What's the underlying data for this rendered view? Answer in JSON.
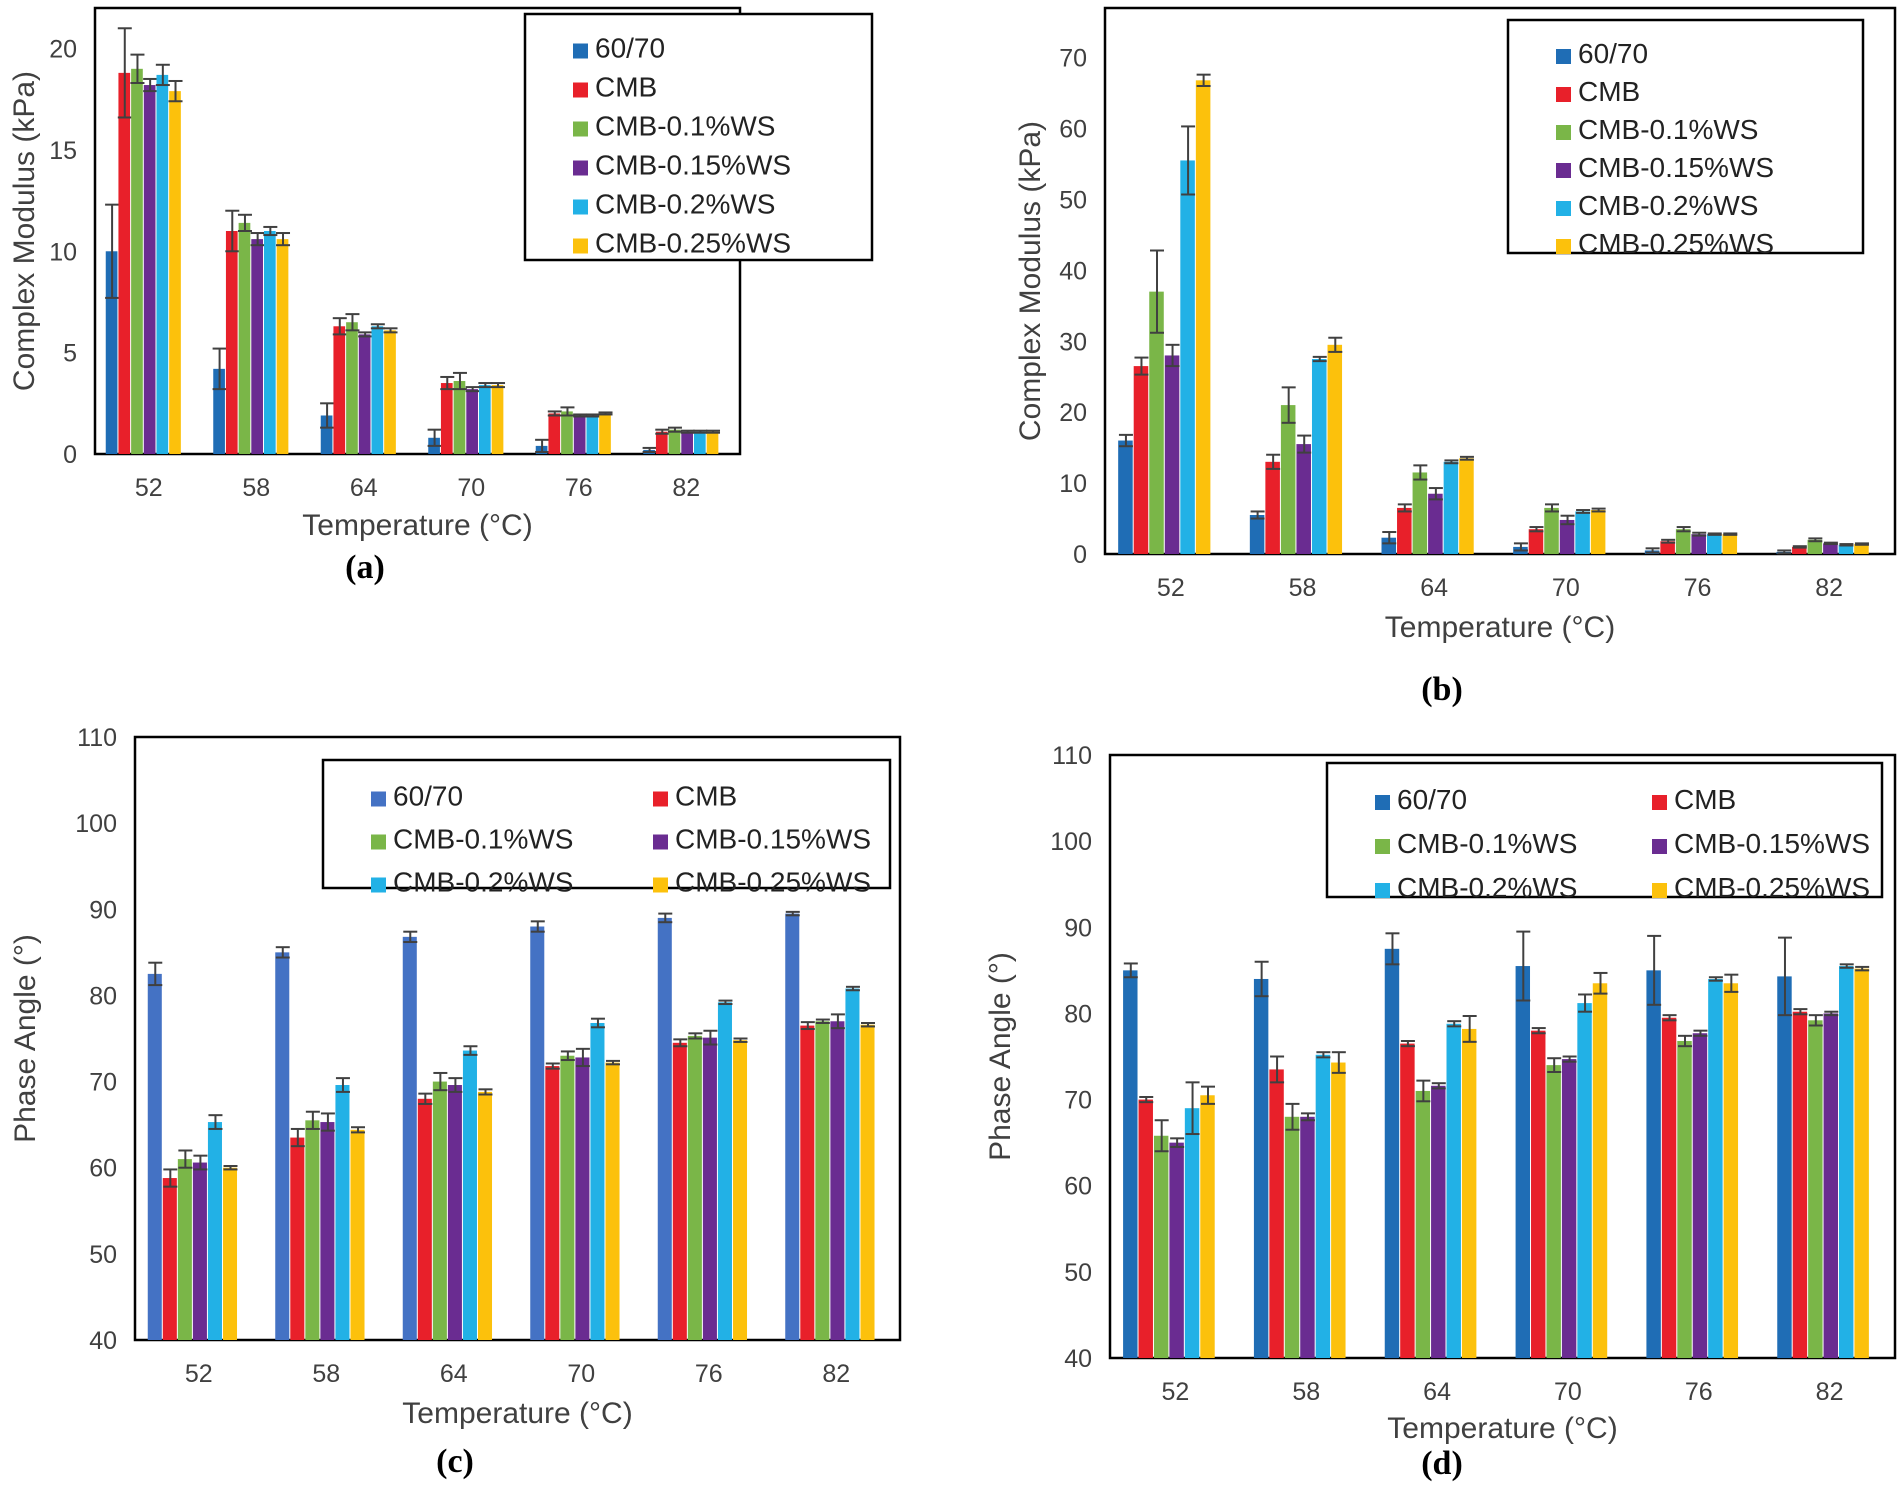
{
  "series_colors": {
    "60/70": "#1f6db5",
    "60/70_alt": "#4472c4",
    "CMB": "#e8202a",
    "CMB-0.1%WS": "#7ab648",
    "CMB-0.15%WS": "#6a2c91",
    "CMB-0.2%WS": "#22b1e6",
    "CMB-0.25%WS": "#fcc10c"
  },
  "chart_data": [
    {
      "type": "bar",
      "caption": "(a)",
      "xlabel": "Temperature (°C)",
      "ylabel": "Complex Modulus (kPa)",
      "ylim": [
        0,
        22
      ],
      "yticks": [
        0,
        5,
        10,
        15,
        20
      ],
      "categories": [
        "52",
        "58",
        "64",
        "70",
        "76",
        "82"
      ],
      "legend_position": "top-right",
      "legend_columns": 1,
      "series": [
        {
          "name": "60/70",
          "values": [
            10.0,
            4.2,
            1.9,
            0.8,
            0.4,
            0.2
          ],
          "errors": [
            2.3,
            1.0,
            0.6,
            0.4,
            0.3,
            0.1
          ]
        },
        {
          "name": "CMB",
          "values": [
            18.8,
            11.0,
            6.3,
            3.5,
            2.0,
            1.1
          ],
          "errors": [
            2.2,
            1.0,
            0.4,
            0.3,
            0.1,
            0.1
          ]
        },
        {
          "name": "CMB-0.1%WS",
          "values": [
            19.0,
            11.4,
            6.5,
            3.6,
            2.1,
            1.2
          ],
          "errors": [
            0.7,
            0.4,
            0.4,
            0.4,
            0.2,
            0.1
          ]
        },
        {
          "name": "CMB-0.15%WS",
          "values": [
            18.2,
            10.6,
            5.9,
            3.2,
            1.9,
            1.1
          ],
          "errors": [
            0.3,
            0.3,
            0.1,
            0.1,
            0.05,
            0.05
          ]
        },
        {
          "name": "CMB-0.2%WS",
          "values": [
            18.7,
            11.0,
            6.3,
            3.4,
            1.9,
            1.1
          ],
          "errors": [
            0.5,
            0.2,
            0.1,
            0.1,
            0.05,
            0.05
          ]
        },
        {
          "name": "CMB-0.25%WS",
          "values": [
            17.9,
            10.6,
            6.1,
            3.4,
            2.0,
            1.1
          ],
          "errors": [
            0.5,
            0.3,
            0.1,
            0.1,
            0.05,
            0.05
          ]
        }
      ]
    },
    {
      "type": "bar",
      "caption": "(b)",
      "xlabel": "Temperature (°C)",
      "ylabel": "Complex Modulus (kPa)",
      "ylim": [
        0,
        77
      ],
      "yticks": [
        0,
        10,
        20,
        30,
        40,
        50,
        60,
        70
      ],
      "categories": [
        "52",
        "58",
        "64",
        "70",
        "76",
        "82"
      ],
      "legend_position": "top-right",
      "legend_columns": 1,
      "series": [
        {
          "name": "60/70",
          "values": [
            16.0,
            5.5,
            2.3,
            1.0,
            0.5,
            0.3
          ],
          "errors": [
            0.8,
            0.5,
            0.8,
            0.5,
            0.3,
            0.2
          ]
        },
        {
          "name": "CMB",
          "values": [
            26.5,
            13.0,
            6.5,
            3.5,
            1.8,
            1.0
          ],
          "errors": [
            1.2,
            1.0,
            0.5,
            0.3,
            0.2,
            0.1
          ]
        },
        {
          "name": "CMB-0.1%WS",
          "values": [
            37.0,
            21.0,
            11.5,
            6.5,
            3.5,
            2.0
          ],
          "errors": [
            5.8,
            2.5,
            1.0,
            0.5,
            0.3,
            0.2
          ]
        },
        {
          "name": "CMB-0.15%WS",
          "values": [
            28.0,
            15.5,
            8.5,
            4.8,
            2.8,
            1.5
          ],
          "errors": [
            1.5,
            1.2,
            0.8,
            0.6,
            0.2,
            0.1
          ]
        },
        {
          "name": "CMB-0.2%WS",
          "values": [
            55.5,
            27.5,
            13.0,
            6.0,
            2.8,
            1.3
          ],
          "errors": [
            4.8,
            0.3,
            0.2,
            0.2,
            0.1,
            0.1
          ]
        },
        {
          "name": "CMB-0.25%WS",
          "values": [
            66.8,
            29.5,
            13.5,
            6.2,
            2.8,
            1.4
          ],
          "errors": [
            0.8,
            1.0,
            0.2,
            0.2,
            0.1,
            0.1
          ]
        }
      ]
    },
    {
      "type": "bar",
      "caption": "(c)",
      "xlabel": "Temperature (°C)",
      "ylabel": "Phase Angle (°)",
      "ylim": [
        40,
        110
      ],
      "yticks": [
        40,
        50,
        60,
        70,
        80,
        90,
        100,
        110
      ],
      "categories": [
        "52",
        "58",
        "64",
        "70",
        "76",
        "82"
      ],
      "legend_position": "top-right",
      "legend_columns": 2,
      "series": [
        {
          "name": "60/70",
          "color_key": "60/70_alt",
          "values": [
            82.5,
            85.0,
            86.8,
            88.0,
            89.0,
            89.5
          ],
          "errors": [
            1.3,
            0.6,
            0.6,
            0.6,
            0.5,
            0.2
          ]
        },
        {
          "name": "CMB",
          "values": [
            58.8,
            63.5,
            68.0,
            71.8,
            74.5,
            76.5
          ],
          "errors": [
            1.0,
            1.0,
            0.6,
            0.3,
            0.4,
            0.4
          ]
        },
        {
          "name": "CMB-0.1%WS",
          "values": [
            61.0,
            65.5,
            70.0,
            73.0,
            75.3,
            77.0
          ],
          "errors": [
            1.0,
            1.0,
            1.0,
            0.5,
            0.3,
            0.2
          ]
        },
        {
          "name": "CMB-0.15%WS",
          "values": [
            60.6,
            65.3,
            69.6,
            72.8,
            75.1,
            77.0
          ],
          "errors": [
            0.8,
            1.0,
            0.8,
            1.0,
            0.8,
            0.8
          ]
        },
        {
          "name": "CMB-0.2%WS",
          "values": [
            65.3,
            69.6,
            73.6,
            76.8,
            79.2,
            80.8
          ],
          "errors": [
            0.8,
            0.8,
            0.5,
            0.5,
            0.2,
            0.2
          ]
        },
        {
          "name": "CMB-0.25%WS",
          "values": [
            60.0,
            64.4,
            68.8,
            72.2,
            74.8,
            76.6
          ],
          "errors": [
            0.2,
            0.3,
            0.3,
            0.2,
            0.2,
            0.2
          ]
        }
      ]
    },
    {
      "type": "bar",
      "caption": "(d)",
      "xlabel": "Temperature (°C)",
      "ylabel": "Phase Angle (°)",
      "ylim": [
        40,
        110
      ],
      "yticks": [
        40,
        50,
        60,
        70,
        80,
        90,
        100,
        110
      ],
      "categories": [
        "52",
        "58",
        "64",
        "70",
        "76",
        "82"
      ],
      "legend_position": "top-right",
      "legend_columns": 2,
      "series": [
        {
          "name": "60/70",
          "values": [
            85.0,
            84.0,
            87.5,
            85.5,
            85.0,
            84.3
          ],
          "errors": [
            0.8,
            2.0,
            1.8,
            4.0,
            4.0,
            4.5
          ]
        },
        {
          "name": "CMB",
          "values": [
            70.0,
            73.5,
            76.5,
            78.0,
            79.5,
            80.2
          ],
          "errors": [
            0.3,
            1.5,
            0.3,
            0.3,
            0.3,
            0.3
          ]
        },
        {
          "name": "CMB-0.1%WS",
          "values": [
            65.8,
            68.0,
            71.0,
            74.0,
            76.8,
            79.2
          ],
          "errors": [
            1.8,
            1.5,
            1.2,
            0.8,
            0.6,
            0.6
          ]
        },
        {
          "name": "CMB-0.15%WS",
          "values": [
            65.0,
            68.0,
            71.6,
            74.7,
            77.7,
            80.0
          ],
          "errors": [
            0.5,
            0.4,
            0.3,
            0.3,
            0.3,
            0.2
          ]
        },
        {
          "name": "CMB-0.2%WS",
          "values": [
            69.0,
            75.2,
            78.8,
            81.2,
            84.0,
            85.5
          ],
          "errors": [
            3.0,
            0.3,
            0.3,
            1.0,
            0.2,
            0.2
          ]
        },
        {
          "name": "CMB-0.25%WS",
          "values": [
            70.5,
            74.3,
            78.2,
            83.5,
            83.5,
            85.2
          ],
          "errors": [
            1.0,
            1.2,
            1.5,
            1.2,
            1.0,
            0.2
          ]
        }
      ]
    }
  ]
}
